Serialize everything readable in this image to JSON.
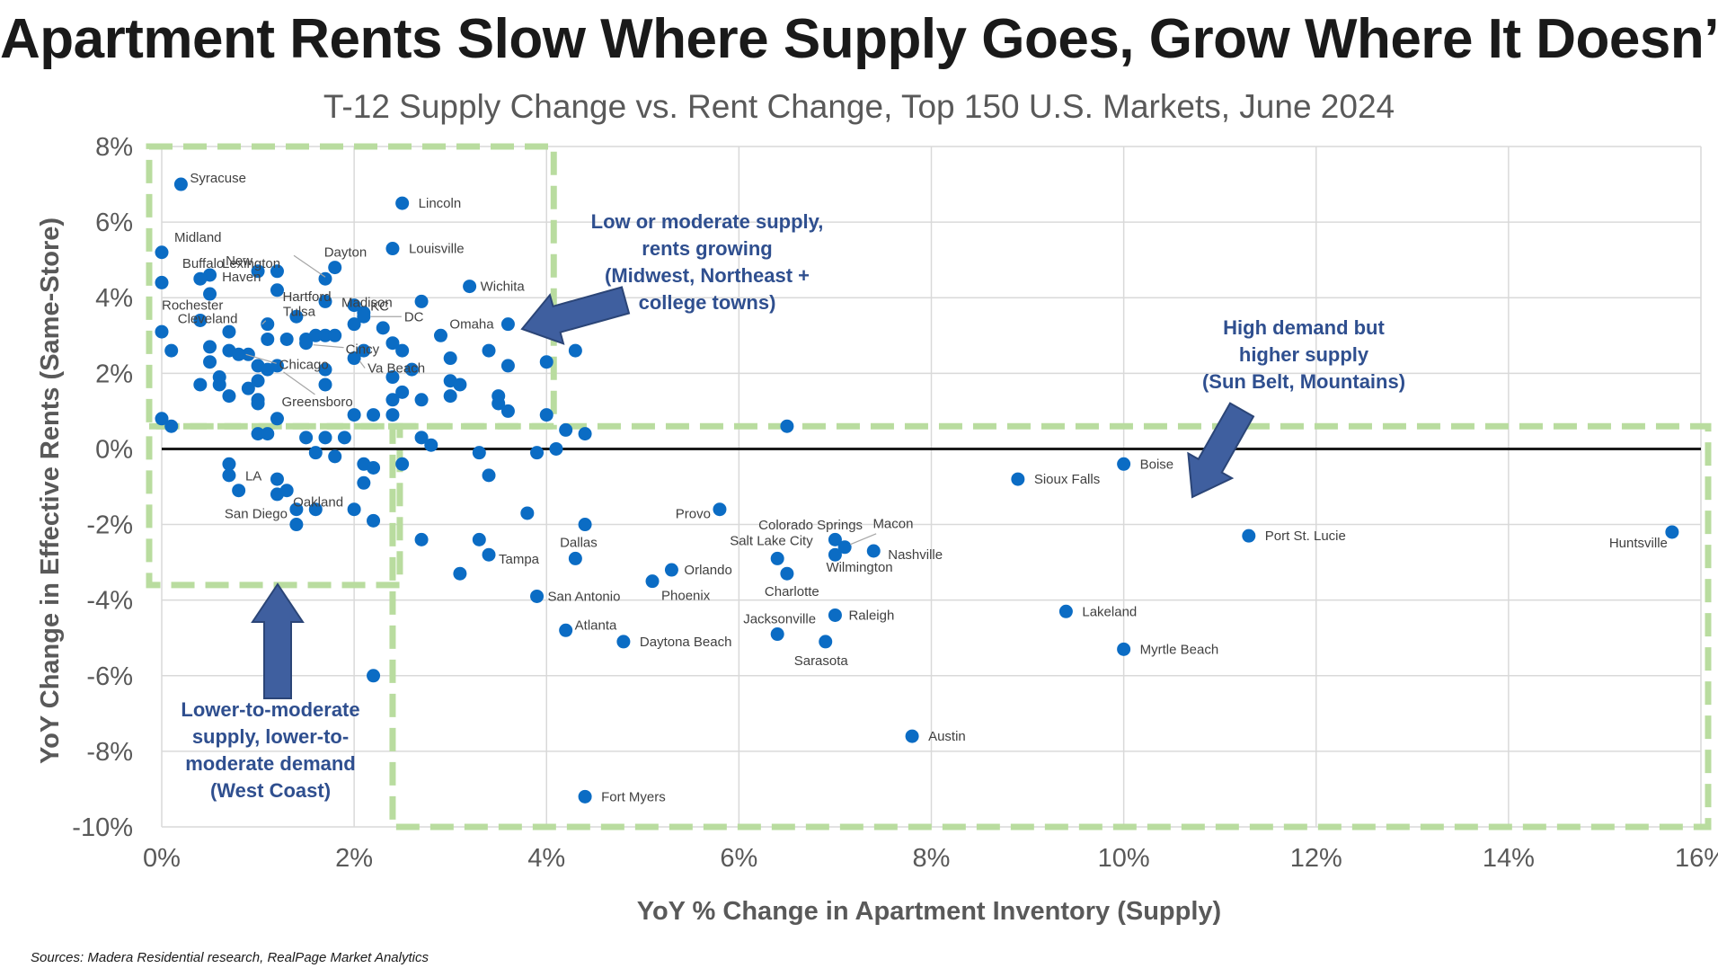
{
  "chart_data": {
    "type": "scatter",
    "title": "Apartment Rents Slow Where Supply Goes, Grow Where It Doesn’t",
    "subtitle": "T-12 Supply Change vs. Rent Change, Top 150 U.S. Markets, June 2024",
    "xlabel": "YoY % Change in Apartment Inventory (Supply)",
    "ylabel": "YoY Change in Effective Rents (Same-Store)",
    "xlim": [
      0,
      16
    ],
    "ylim": [
      -10,
      8
    ],
    "x_ticks": [
      0,
      2,
      4,
      6,
      8,
      10,
      12,
      14,
      16
    ],
    "x_tick_labels": [
      "0%",
      "2%",
      "4%",
      "6%",
      "8%",
      "10%",
      "12%",
      "14%",
      "16%"
    ],
    "y_ticks": [
      -10,
      -8,
      -6,
      -4,
      -2,
      0,
      2,
      4,
      6,
      8
    ],
    "y_tick_labels": [
      "-10%",
      "-8%",
      "-6%",
      "-4%",
      "-2%",
      "0%",
      "2%",
      "4%",
      "6%",
      "8%"
    ],
    "grid": true,
    "marker_color": "#0b6cc4",
    "labeled_points": [
      {
        "label": "Syracuse",
        "x": 0.2,
        "y": 7.0
      },
      {
        "label": "Lincoln",
        "x": 2.5,
        "y": 6.5
      },
      {
        "label": "Midland",
        "x": 0.0,
        "y": 5.2
      },
      {
        "label": "Louisville",
        "x": 2.4,
        "y": 5.3
      },
      {
        "label": "Lexington",
        "x": 1.7,
        "y": 4.5
      },
      {
        "label": "Dayton",
        "x": 1.8,
        "y": 4.8
      },
      {
        "label": "Buffalo",
        "x": 0.4,
        "y": 4.5
      },
      {
        "label": "New Haven",
        "x": 1.0,
        "y": 4.7
      },
      {
        "label": "Hartford",
        "x": 1.2,
        "y": 4.2
      },
      {
        "label": "Madison",
        "x": 1.7,
        "y": 3.9
      },
      {
        "label": "Wichita",
        "x": 3.2,
        "y": 4.3
      },
      {
        "label": "Rochester",
        "x": 0.0,
        "y": 4.4
      },
      {
        "label": "KC",
        "x": 2.0,
        "y": 3.8
      },
      {
        "label": "Tulsa",
        "x": 1.4,
        "y": 3.5
      },
      {
        "label": "Cleveland",
        "x": 1.1,
        "y": 3.3
      },
      {
        "label": "DC",
        "x": 2.1,
        "y": 3.5
      },
      {
        "label": "Omaha",
        "x": 3.6,
        "y": 3.3
      },
      {
        "label": "Cincy",
        "x": 1.5,
        "y": 2.8
      },
      {
        "label": "Chicago",
        "x": 0.8,
        "y": 2.5
      },
      {
        "label": "Va Beach",
        "x": 2.0,
        "y": 2.4
      },
      {
        "label": "Greensboro",
        "x": 1.2,
        "y": 2.2
      },
      {
        "label": "LA",
        "x": 0.7,
        "y": -0.4
      },
      {
        "label": "Oakland",
        "x": 1.3,
        "y": -1.1
      },
      {
        "label": "San Diego",
        "x": 1.4,
        "y": -1.6
      },
      {
        "label": "Boise",
        "x": 10.0,
        "y": -0.4
      },
      {
        "label": "Sioux Falls",
        "x": 8.9,
        "y": -0.8
      },
      {
        "label": "Provo",
        "x": 5.8,
        "y": -1.6
      },
      {
        "label": "Dallas",
        "x": 4.4,
        "y": -2.0
      },
      {
        "label": "Colorado Springs",
        "x": 7.1,
        "y": -2.6
      },
      {
        "label": "Salt Lake City",
        "x": 6.4,
        "y": -2.9
      },
      {
        "label": "Macon",
        "x": 7.0,
        "y": -2.4
      },
      {
        "label": "Nashville",
        "x": 7.4,
        "y": -2.7
      },
      {
        "label": "Wilmington",
        "x": 7.0,
        "y": -2.8
      },
      {
        "label": "Port St. Lucie",
        "x": 11.3,
        "y": -2.3
      },
      {
        "label": "Huntsville",
        "x": 15.7,
        "y": -2.2
      },
      {
        "label": "Tampa",
        "x": 3.4,
        "y": -2.8
      },
      {
        "label": "Orlando",
        "x": 5.3,
        "y": -3.2
      },
      {
        "label": "Charlotte",
        "x": 6.5,
        "y": -3.3
      },
      {
        "label": "Phoenix",
        "x": 5.1,
        "y": -3.5
      },
      {
        "label": "San Antonio",
        "x": 3.9,
        "y": -3.9
      },
      {
        "label": "Raleigh",
        "x": 7.0,
        "y": -4.4
      },
      {
        "label": "Lakeland",
        "x": 9.4,
        "y": -4.3
      },
      {
        "label": "Atlanta",
        "x": 4.2,
        "y": -4.8
      },
      {
        "label": "Jacksonville",
        "x": 6.4,
        "y": -4.9
      },
      {
        "label": "Daytona Beach",
        "x": 4.8,
        "y": -5.1
      },
      {
        "label": "Sarasota",
        "x": 6.9,
        "y": -5.1
      },
      {
        "label": "Myrtle Beach",
        "x": 10.0,
        "y": -5.3
      },
      {
        "label": "Austin",
        "x": 7.8,
        "y": -7.6
      },
      {
        "label": "Fort Myers",
        "x": 4.4,
        "y": -9.2
      }
    ],
    "unlabeled_points": [
      [
        0.0,
        3.1
      ],
      [
        0.1,
        2.6
      ],
      [
        0.0,
        0.8
      ],
      [
        0.1,
        0.6
      ],
      [
        0.4,
        3.4
      ],
      [
        0.5,
        4.6
      ],
      [
        0.5,
        4.1
      ],
      [
        0.5,
        2.7
      ],
      [
        0.5,
        2.3
      ],
      [
        0.4,
        1.7
      ],
      [
        0.6,
        1.9
      ],
      [
        0.6,
        1.7
      ],
      [
        0.7,
        3.1
      ],
      [
        0.7,
        2.6
      ],
      [
        0.7,
        1.4
      ],
      [
        0.9,
        2.5
      ],
      [
        0.9,
        1.6
      ],
      [
        1.0,
        2.2
      ],
      [
        1.0,
        1.8
      ],
      [
        1.0,
        1.3
      ],
      [
        1.0,
        1.2
      ],
      [
        1.1,
        2.9
      ],
      [
        1.1,
        2.1
      ],
      [
        1.2,
        4.7
      ],
      [
        1.3,
        2.9
      ],
      [
        1.5,
        2.9
      ],
      [
        1.6,
        3.0
      ],
      [
        1.7,
        3.0
      ],
      [
        1.7,
        2.1
      ],
      [
        1.7,
        1.7
      ],
      [
        1.8,
        3.0
      ],
      [
        2.0,
        3.3
      ],
      [
        2.1,
        2.6
      ],
      [
        2.1,
        3.6
      ],
      [
        2.3,
        3.2
      ],
      [
        2.4,
        2.8
      ],
      [
        2.5,
        2.6
      ],
      [
        2.6,
        2.1
      ],
      [
        2.4,
        1.9
      ],
      [
        2.5,
        1.5
      ],
      [
        2.4,
        1.3
      ],
      [
        2.4,
        0.9
      ],
      [
        2.7,
        3.9
      ],
      [
        2.7,
        1.3
      ],
      [
        2.9,
        3.0
      ],
      [
        3.0,
        2.4
      ],
      [
        3.0,
        1.8
      ],
      [
        3.1,
        1.7
      ],
      [
        3.0,
        1.4
      ],
      [
        3.4,
        2.6
      ],
      [
        3.5,
        1.4
      ],
      [
        3.5,
        1.2
      ],
      [
        3.6,
        2.2
      ],
      [
        3.6,
        1.0
      ],
      [
        4.0,
        2.3
      ],
      [
        4.3,
        2.6
      ],
      [
        4.0,
        0.9
      ],
      [
        4.2,
        0.5
      ],
      [
        4.4,
        0.4
      ],
      [
        6.5,
        0.6
      ],
      [
        1.0,
        0.4
      ],
      [
        1.1,
        0.4
      ],
      [
        1.2,
        0.8
      ],
      [
        1.5,
        0.3
      ],
      [
        1.7,
        0.3
      ],
      [
        1.9,
        0.3
      ],
      [
        2.0,
        0.9
      ],
      [
        2.2,
        0.9
      ],
      [
        2.7,
        0.3
      ],
      [
        2.8,
        0.1
      ],
      [
        1.6,
        -0.1
      ],
      [
        1.8,
        -0.2
      ],
      [
        2.5,
        -0.4
      ],
      [
        2.1,
        -0.4
      ],
      [
        2.2,
        -0.5
      ],
      [
        3.3,
        -0.1
      ],
      [
        3.4,
        -0.7
      ],
      [
        3.9,
        -0.1
      ],
      [
        4.1,
        0.0
      ],
      [
        0.7,
        -0.7
      ],
      [
        0.8,
        -1.1
      ],
      [
        1.2,
        -0.8
      ],
      [
        1.2,
        -1.2
      ],
      [
        1.4,
        -2.0
      ],
      [
        1.6,
        -1.6
      ],
      [
        2.1,
        -0.9
      ],
      [
        2.0,
        -1.6
      ],
      [
        2.2,
        -1.9
      ],
      [
        3.8,
        -1.7
      ],
      [
        2.7,
        -2.4
      ],
      [
        3.3,
        -2.4
      ],
      [
        4.3,
        -2.9
      ],
      [
        3.1,
        -3.3
      ],
      [
        2.2,
        -6.0
      ]
    ],
    "regions": [
      {
        "name": "low-supply-growing",
        "x": [
          0,
          4
        ],
        "y": [
          0.6,
          8
        ]
      },
      {
        "name": "west-coast",
        "x": [
          0,
          2.4
        ],
        "y": [
          -3.6,
          0.6
        ]
      },
      {
        "name": "sun-belt",
        "x": [
          2.4,
          16
        ],
        "y": [
          -10,
          0.6
        ]
      }
    ],
    "region_color": "#b9dc9f",
    "annotations": [
      {
        "lines": [
          "Low or moderate supply,",
          "rents growing",
          "(Midwest, Northeast +",
          "college towns)"
        ]
      },
      {
        "lines": [
          "High demand but",
          "higher supply",
          "(Sun Belt, Mountains)"
        ]
      },
      {
        "lines": [
          "Lower-to-moderate",
          "supply, lower-to-",
          "moderate demand",
          "(West Coast)"
        ]
      }
    ],
    "annotation_color": "#2f4f8f",
    "arrow_color": "#3f5f9f"
  },
  "sources": "Sources: Madera Residential research, RealPage Market Analytics"
}
